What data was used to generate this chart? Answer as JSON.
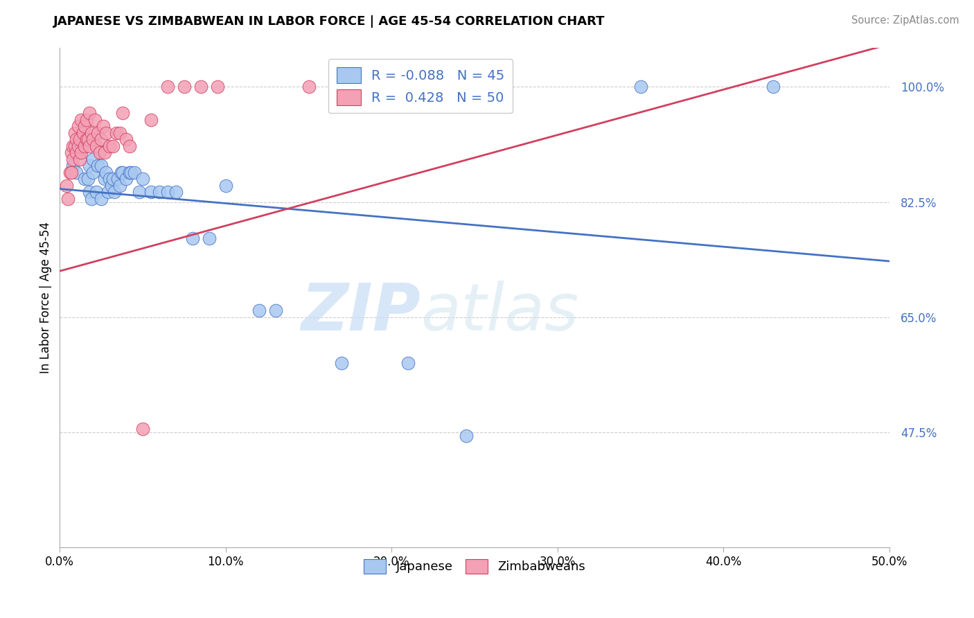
{
  "title": "JAPANESE VS ZIMBABWEAN IN LABOR FORCE | AGE 45-54 CORRELATION CHART",
  "source": "Source: ZipAtlas.com",
  "ylabel": "In Labor Force | Age 45-54",
  "xlim": [
    0.0,
    0.5
  ],
  "ylim": [
    0.3,
    1.06
  ],
  "xticks": [
    0.0,
    0.1,
    0.2,
    0.3,
    0.4,
    0.5
  ],
  "xticklabels": [
    "0.0%",
    "10.0%",
    "20.0%",
    "30.0%",
    "40.0%",
    "50.0%"
  ],
  "yticks": [
    0.475,
    0.65,
    0.825,
    1.0
  ],
  "yticklabels": [
    "47.5%",
    "65.0%",
    "82.5%",
    "100.0%"
  ],
  "legend_labels": [
    "Japanese",
    "Zimbabweans"
  ],
  "blue_color": "#a8c8f0",
  "pink_color": "#f4a0b5",
  "blue_line_color": "#4472c4",
  "pink_line_color": "#d04060",
  "R_blue": -0.088,
  "N_blue": 45,
  "R_pink": 0.428,
  "N_pink": 50,
  "watermark_zip": "ZIP",
  "watermark_atlas": "atlas",
  "blue_trend_x": [
    0.0,
    0.5
  ],
  "blue_trend_y": [
    0.845,
    0.735
  ],
  "pink_trend_x": [
    0.0,
    0.5
  ],
  "pink_trend_y": [
    0.72,
    1.065
  ],
  "blue_scatter_x": [
    0.008,
    0.01,
    0.012,
    0.015,
    0.017,
    0.018,
    0.018,
    0.019,
    0.02,
    0.02,
    0.022,
    0.023,
    0.025,
    0.025,
    0.027,
    0.028,
    0.029,
    0.03,
    0.031,
    0.032,
    0.033,
    0.035,
    0.036,
    0.037,
    0.038,
    0.04,
    0.042,
    0.043,
    0.045,
    0.048,
    0.05,
    0.055,
    0.06,
    0.065,
    0.07,
    0.08,
    0.09,
    0.1,
    0.12,
    0.13,
    0.17,
    0.21,
    0.245,
    0.35,
    0.43
  ],
  "blue_scatter_y": [
    0.88,
    0.87,
    0.9,
    0.86,
    0.86,
    0.84,
    0.88,
    0.83,
    0.87,
    0.89,
    0.84,
    0.88,
    0.83,
    0.88,
    0.86,
    0.87,
    0.84,
    0.86,
    0.85,
    0.86,
    0.84,
    0.86,
    0.85,
    0.87,
    0.87,
    0.86,
    0.87,
    0.87,
    0.87,
    0.84,
    0.86,
    0.84,
    0.84,
    0.84,
    0.84,
    0.77,
    0.77,
    0.85,
    0.66,
    0.66,
    0.58,
    0.58,
    0.47,
    1.0,
    1.0
  ],
  "pink_scatter_x": [
    0.004,
    0.005,
    0.006,
    0.007,
    0.007,
    0.008,
    0.008,
    0.009,
    0.009,
    0.01,
    0.01,
    0.011,
    0.011,
    0.012,
    0.012,
    0.013,
    0.013,
    0.014,
    0.015,
    0.015,
    0.016,
    0.016,
    0.017,
    0.018,
    0.018,
    0.019,
    0.02,
    0.021,
    0.022,
    0.023,
    0.024,
    0.025,
    0.026,
    0.027,
    0.028,
    0.03,
    0.032,
    0.034,
    0.036,
    0.038,
    0.04,
    0.042,
    0.05,
    0.055,
    0.065,
    0.075,
    0.085,
    0.095,
    0.15,
    0.22
  ],
  "pink_scatter_y": [
    0.85,
    0.83,
    0.87,
    0.87,
    0.9,
    0.89,
    0.91,
    0.91,
    0.93,
    0.9,
    0.92,
    0.91,
    0.94,
    0.89,
    0.92,
    0.9,
    0.95,
    0.93,
    0.91,
    0.94,
    0.92,
    0.95,
    0.92,
    0.91,
    0.96,
    0.93,
    0.92,
    0.95,
    0.91,
    0.93,
    0.9,
    0.92,
    0.94,
    0.9,
    0.93,
    0.91,
    0.91,
    0.93,
    0.93,
    0.96,
    0.92,
    0.91,
    0.48,
    0.95,
    1.0,
    1.0,
    1.0,
    1.0,
    1.0,
    1.0
  ]
}
